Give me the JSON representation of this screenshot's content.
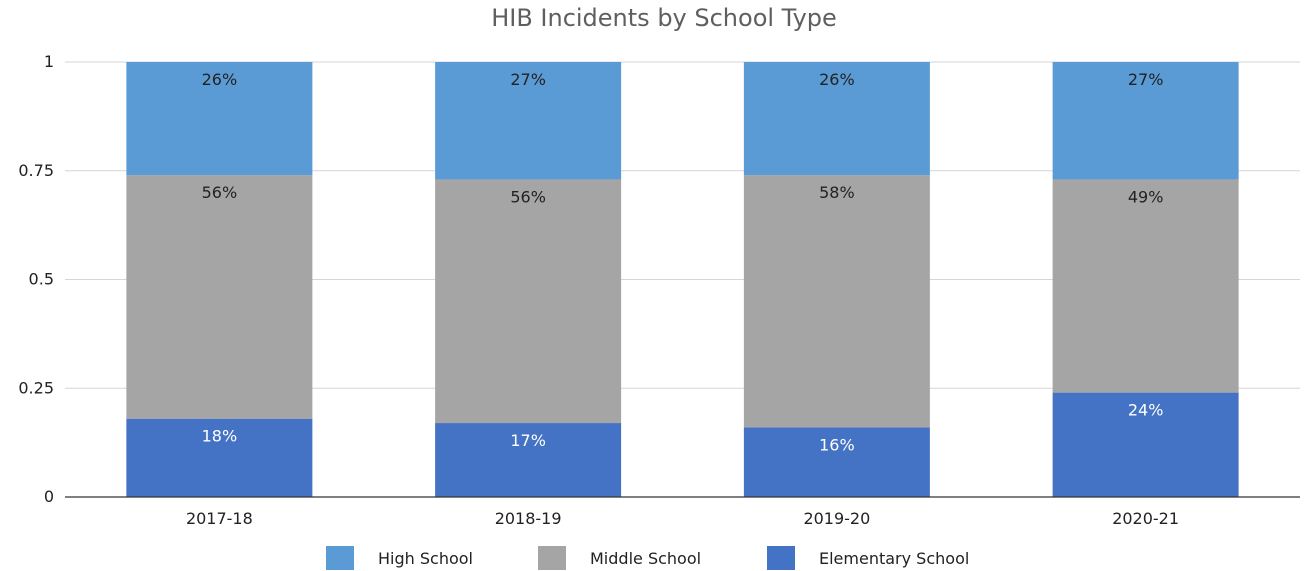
{
  "chart_data": {
    "type": "bar",
    "stacked": true,
    "title": "HIB Incidents by School Type",
    "xlabel": "",
    "ylabel": "",
    "ylim": [
      0,
      1
    ],
    "yticks": [
      "0",
      "0.25",
      "0.5",
      "0.75",
      "1"
    ],
    "categories": [
      "2017-18",
      "2018-19",
      "2019-20",
      "2020-21"
    ],
    "grid": true,
    "legend_position": "bottom",
    "series": [
      {
        "name": "Elementary School",
        "color": "#4472c4",
        "label_color": "#ffffff",
        "values": [
          0.18,
          0.17,
          0.16,
          0.24
        ],
        "labels": [
          "18%",
          "17%",
          "16%",
          "24%"
        ]
      },
      {
        "name": "Middle School",
        "color": "#a5a5a5",
        "label_color": "#222222",
        "values": [
          0.56,
          0.56,
          0.58,
          0.49
        ],
        "labels": [
          "56%",
          "56%",
          "58%",
          "49%"
        ]
      },
      {
        "name": "High School",
        "color": "#5b9bd5",
        "label_color": "#222222",
        "values": [
          0.26,
          0.27,
          0.26,
          0.27
        ],
        "labels": [
          "26%",
          "27%",
          "26%",
          "27%"
        ]
      }
    ],
    "legend_order": [
      "High School",
      "Middle School",
      "Elementary School"
    ]
  }
}
